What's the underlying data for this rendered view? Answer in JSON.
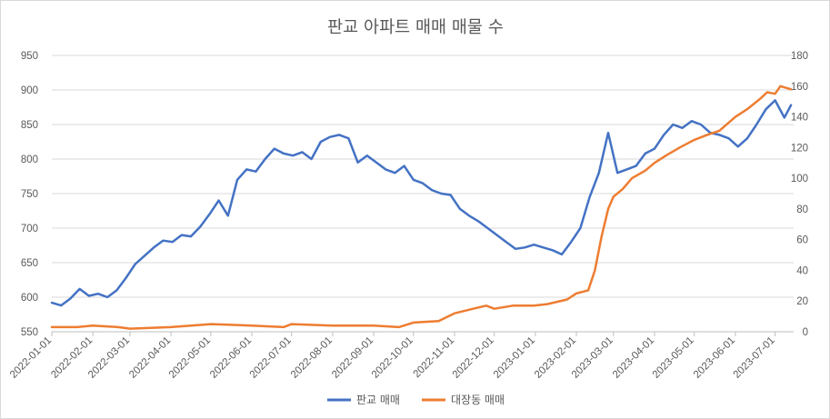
{
  "chart_data": {
    "type": "line",
    "title": "판교 아파트 매매 매물 수",
    "xlabel": "",
    "ylabel": "",
    "x_range": [
      "2022-01-01",
      "2023-07-15"
    ],
    "x_ticks": [
      "2022-01-01",
      "2022-02-01",
      "2022-03-01",
      "2022-04-01",
      "2022-05-01",
      "2022-06-01",
      "2022-07-01",
      "2022-08-01",
      "2022-09-01",
      "2022-10-01",
      "2022-11-01",
      "2022-12-01",
      "2023-01-01",
      "2023-02-01",
      "2023-03-01",
      "2023-04-01",
      "2023-05-01",
      "2023-06-01",
      "2023-07-01"
    ],
    "y_left": {
      "lim": [
        550,
        950
      ],
      "ticks": [
        550,
        600,
        650,
        700,
        750,
        800,
        850,
        900,
        950
      ]
    },
    "y_right": {
      "lim": [
        0,
        180
      ],
      "ticks": [
        0,
        20,
        40,
        60,
        80,
        100,
        120,
        140,
        160,
        180
      ]
    },
    "grid": true,
    "legend_position": "bottom",
    "series": [
      {
        "name": "판교 매매",
        "axis": "left",
        "color": "#4472c4",
        "points": [
          [
            "2022-01-01",
            592
          ],
          [
            "2022-01-08",
            588
          ],
          [
            "2022-01-15",
            598
          ],
          [
            "2022-01-22",
            612
          ],
          [
            "2022-01-29",
            602
          ],
          [
            "2022-02-05",
            605
          ],
          [
            "2022-02-12",
            600
          ],
          [
            "2022-02-19",
            610
          ],
          [
            "2022-02-26",
            628
          ],
          [
            "2022-03-05",
            648
          ],
          [
            "2022-03-12",
            660
          ],
          [
            "2022-03-19",
            672
          ],
          [
            "2022-03-26",
            682
          ],
          [
            "2022-04-02",
            680
          ],
          [
            "2022-04-09",
            690
          ],
          [
            "2022-04-16",
            688
          ],
          [
            "2022-04-23",
            702
          ],
          [
            "2022-04-30",
            720
          ],
          [
            "2022-05-07",
            740
          ],
          [
            "2022-05-14",
            718
          ],
          [
            "2022-05-21",
            770
          ],
          [
            "2022-05-28",
            785
          ],
          [
            "2022-06-04",
            782
          ],
          [
            "2022-06-11",
            800
          ],
          [
            "2022-06-18",
            815
          ],
          [
            "2022-06-25",
            808
          ],
          [
            "2022-07-02",
            805
          ],
          [
            "2022-07-09",
            810
          ],
          [
            "2022-07-16",
            800
          ],
          [
            "2022-07-23",
            825
          ],
          [
            "2022-07-30",
            832
          ],
          [
            "2022-08-06",
            835
          ],
          [
            "2022-08-13",
            830
          ],
          [
            "2022-08-20",
            795
          ],
          [
            "2022-08-27",
            805
          ],
          [
            "2022-09-03",
            795
          ],
          [
            "2022-09-10",
            785
          ],
          [
            "2022-09-17",
            780
          ],
          [
            "2022-09-24",
            790
          ],
          [
            "2022-10-01",
            770
          ],
          [
            "2022-10-08",
            765
          ],
          [
            "2022-10-15",
            755
          ],
          [
            "2022-10-22",
            750
          ],
          [
            "2022-10-29",
            748
          ],
          [
            "2022-11-05",
            728
          ],
          [
            "2022-11-12",
            718
          ],
          [
            "2022-11-19",
            710
          ],
          [
            "2022-11-26",
            700
          ],
          [
            "2022-12-03",
            690
          ],
          [
            "2022-12-10",
            680
          ],
          [
            "2022-12-17",
            670
          ],
          [
            "2022-12-24",
            672
          ],
          [
            "2022-12-31",
            676
          ],
          [
            "2023-01-07",
            672
          ],
          [
            "2023-01-14",
            668
          ],
          [
            "2023-01-21",
            662
          ],
          [
            "2023-01-28",
            680
          ],
          [
            "2023-02-04",
            700
          ],
          [
            "2023-02-11",
            745
          ],
          [
            "2023-02-18",
            780
          ],
          [
            "2023-02-25",
            838
          ],
          [
            "2023-03-04",
            780
          ],
          [
            "2023-03-11",
            785
          ],
          [
            "2023-03-18",
            790
          ],
          [
            "2023-03-25",
            808
          ],
          [
            "2023-04-01",
            815
          ],
          [
            "2023-04-08",
            835
          ],
          [
            "2023-04-15",
            850
          ],
          [
            "2023-04-22",
            845
          ],
          [
            "2023-04-29",
            855
          ],
          [
            "2023-05-06",
            850
          ],
          [
            "2023-05-13",
            838
          ],
          [
            "2023-05-20",
            835
          ],
          [
            "2023-05-27",
            830
          ],
          [
            "2023-06-03",
            818
          ],
          [
            "2023-06-10",
            830
          ],
          [
            "2023-06-17",
            850
          ],
          [
            "2023-06-24",
            872
          ],
          [
            "2023-07-01",
            885
          ],
          [
            "2023-07-08",
            860
          ],
          [
            "2023-07-13",
            878
          ]
        ]
      },
      {
        "name": "대장동 매매",
        "axis": "right",
        "color": "#ed7d31",
        "points": [
          [
            "2022-01-01",
            3
          ],
          [
            "2022-01-20",
            3
          ],
          [
            "2022-02-01",
            4
          ],
          [
            "2022-02-20",
            3
          ],
          [
            "2022-03-01",
            2
          ],
          [
            "2022-04-01",
            3
          ],
          [
            "2022-05-01",
            5
          ],
          [
            "2022-06-01",
            4
          ],
          [
            "2022-06-25",
            3
          ],
          [
            "2022-07-01",
            5
          ],
          [
            "2022-08-01",
            4
          ],
          [
            "2022-09-01",
            4
          ],
          [
            "2022-09-20",
            3
          ],
          [
            "2022-10-01",
            6
          ],
          [
            "2022-10-20",
            7
          ],
          [
            "2022-11-01",
            12
          ],
          [
            "2022-11-15",
            15
          ],
          [
            "2022-11-25",
            17
          ],
          [
            "2022-12-01",
            15
          ],
          [
            "2022-12-15",
            17
          ],
          [
            "2022-12-31",
            17
          ],
          [
            "2023-01-10",
            18
          ],
          [
            "2023-01-25",
            21
          ],
          [
            "2023-02-01",
            25
          ],
          [
            "2023-02-10",
            27
          ],
          [
            "2023-02-15",
            40
          ],
          [
            "2023-02-20",
            62
          ],
          [
            "2023-02-25",
            80
          ],
          [
            "2023-03-01",
            88
          ],
          [
            "2023-03-08",
            93
          ],
          [
            "2023-03-15",
            100
          ],
          [
            "2023-03-25",
            105
          ],
          [
            "2023-04-01",
            110
          ],
          [
            "2023-04-10",
            115
          ],
          [
            "2023-04-20",
            120
          ],
          [
            "2023-05-01",
            125
          ],
          [
            "2023-05-10",
            128
          ],
          [
            "2023-05-20",
            131
          ],
          [
            "2023-06-01",
            140
          ],
          [
            "2023-06-10",
            145
          ],
          [
            "2023-06-20",
            152
          ],
          [
            "2023-06-25",
            156
          ],
          [
            "2023-07-01",
            155
          ],
          [
            "2023-07-05",
            160
          ],
          [
            "2023-07-13",
            158
          ]
        ]
      }
    ]
  }
}
